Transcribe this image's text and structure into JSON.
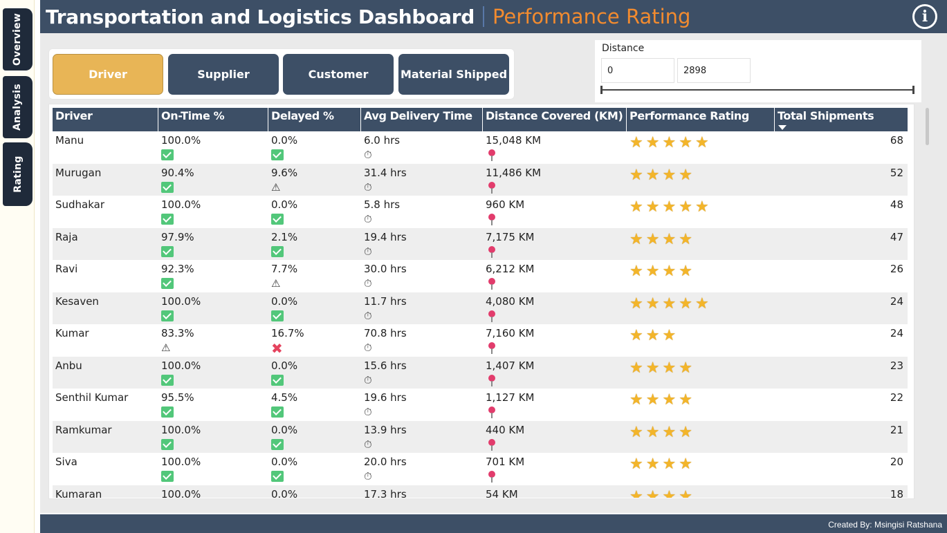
{
  "nav": {
    "tabs": [
      {
        "label": "Overview"
      },
      {
        "label": "Analysis"
      },
      {
        "label": "Rating"
      }
    ]
  },
  "header": {
    "title": "Transportation and Logistics Dashboard",
    "subtitle": "Performance Rating",
    "info_glyph": "i"
  },
  "filters": {
    "buttons": [
      "Driver",
      "Supplier",
      "Customer",
      "Material Shipped"
    ],
    "active": "Driver"
  },
  "distance": {
    "label": "Distance",
    "min": "0",
    "max": "2898"
  },
  "table": {
    "columns": [
      "Driver",
      "On-Time %",
      "Delayed %",
      "Avg Delivery Time",
      "Distance Covered (KM)",
      "Performance Rating",
      "Total Shipments"
    ],
    "sorted_column": "Total Shipments",
    "rows": [
      {
        "driver": "Manu",
        "ontime": "100.0%",
        "ontime_icon": "check",
        "delayed": "0.0%",
        "delayed_icon": "check",
        "avg": "6.0 hrs",
        "distance": "15,048 KM",
        "rating": 5,
        "shipments": "68"
      },
      {
        "driver": "Murugan",
        "ontime": "90.4%",
        "ontime_icon": "check",
        "delayed": "9.6%",
        "delayed_icon": "warning",
        "avg": "31.4 hrs",
        "distance": "11,486 KM",
        "rating": 4,
        "shipments": "52"
      },
      {
        "driver": "Sudhakar",
        "ontime": "100.0%",
        "ontime_icon": "check",
        "delayed": "0.0%",
        "delayed_icon": "check",
        "avg": "5.8 hrs",
        "distance": "960 KM",
        "rating": 5,
        "shipments": "48"
      },
      {
        "driver": "Raja",
        "ontime": "97.9%",
        "ontime_icon": "check",
        "delayed": "2.1%",
        "delayed_icon": "check",
        "avg": "19.4 hrs",
        "distance": "7,175 KM",
        "rating": 4,
        "shipments": "47"
      },
      {
        "driver": "Ravi",
        "ontime": "92.3%",
        "ontime_icon": "check",
        "delayed": "7.7%",
        "delayed_icon": "warning",
        "avg": "30.0 hrs",
        "distance": "6,212 KM",
        "rating": 4,
        "shipments": "26"
      },
      {
        "driver": "Kesaven",
        "ontime": "100.0%",
        "ontime_icon": "check",
        "delayed": "0.0%",
        "delayed_icon": "check",
        "avg": "11.7 hrs",
        "distance": "4,080 KM",
        "rating": 5,
        "shipments": "24"
      },
      {
        "driver": "Kumar",
        "ontime": "83.3%",
        "ontime_icon": "warning",
        "delayed": "16.7%",
        "delayed_icon": "cross",
        "avg": "70.8 hrs",
        "distance": "7,160 KM",
        "rating": 3,
        "shipments": "24"
      },
      {
        "driver": "Anbu",
        "ontime": "100.0%",
        "ontime_icon": "check",
        "delayed": "0.0%",
        "delayed_icon": "check",
        "avg": "15.6 hrs",
        "distance": "1,407 KM",
        "rating": 4,
        "shipments": "23"
      },
      {
        "driver": "Senthil Kumar",
        "ontime": "95.5%",
        "ontime_icon": "check",
        "delayed": "4.5%",
        "delayed_icon": "check",
        "avg": "19.6 hrs",
        "distance": "1,127 KM",
        "rating": 4,
        "shipments": "22"
      },
      {
        "driver": "Ramkumar",
        "ontime": "100.0%",
        "ontime_icon": "check",
        "delayed": "0.0%",
        "delayed_icon": "check",
        "avg": "13.9 hrs",
        "distance": "440 KM",
        "rating": 4,
        "shipments": "21"
      },
      {
        "driver": "Siva",
        "ontime": "100.0%",
        "ontime_icon": "check",
        "delayed": "0.0%",
        "delayed_icon": "check",
        "avg": "20.0 hrs",
        "distance": "701 KM",
        "rating": 4,
        "shipments": "20"
      },
      {
        "driver": "Kumaran",
        "ontime": "100.0%",
        "ontime_icon": "check",
        "delayed": "0.0%",
        "delayed_icon": "check",
        "avg": "17.3 hrs",
        "distance": "54 KM",
        "rating": 4,
        "shipments": "18"
      }
    ]
  },
  "footer": {
    "credit": "Created By: Msingisi Ratshana"
  },
  "colors": {
    "header": "#3d4f66",
    "accent": "#f28b2f",
    "active_tab": "#e8b556",
    "star": "#f3b52a",
    "check": "#52c77a",
    "cross": "#e5435e"
  }
}
